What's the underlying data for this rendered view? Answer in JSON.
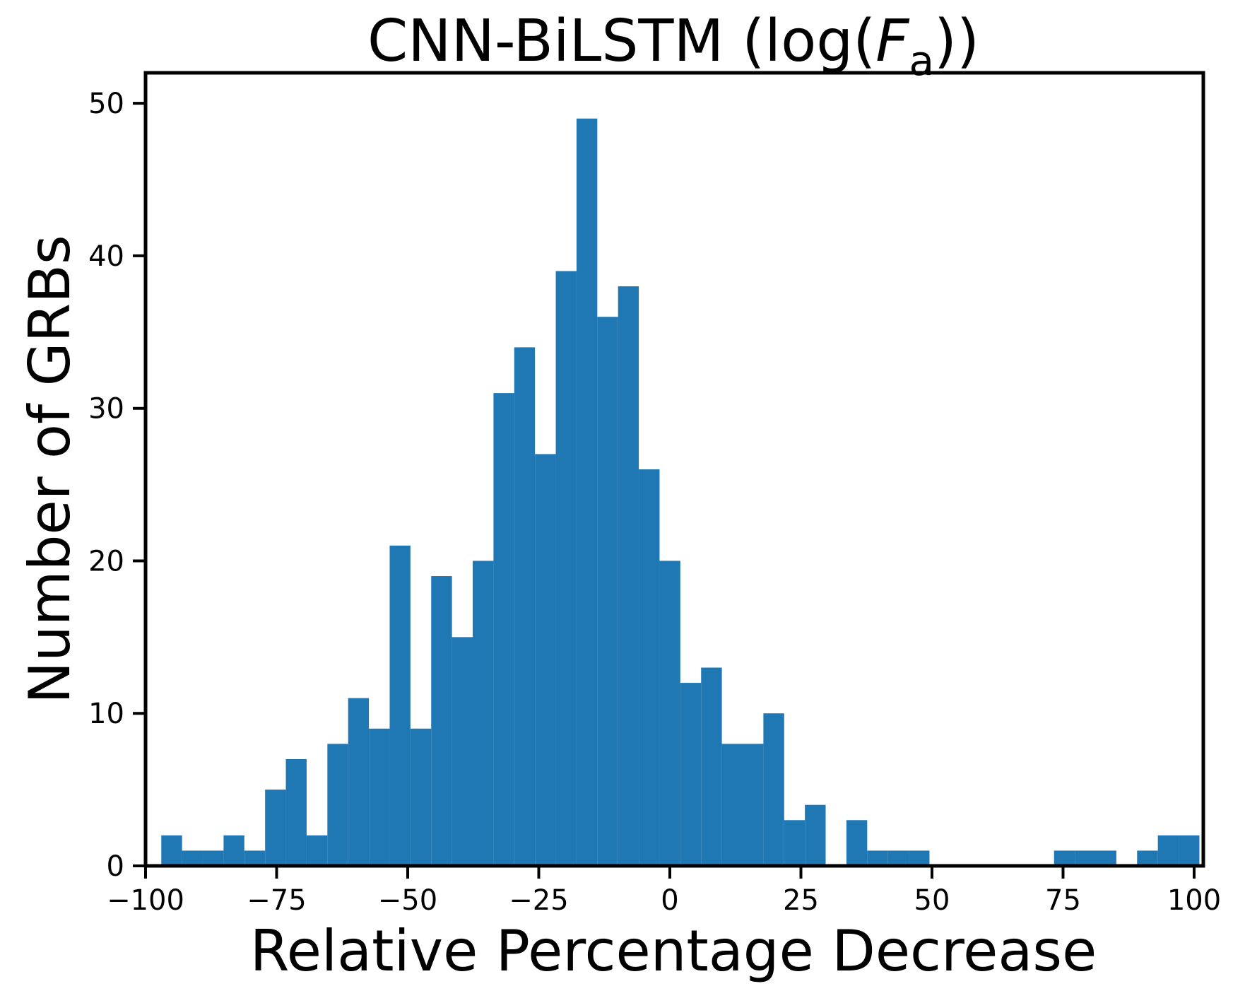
{
  "title": {
    "prefix": "CNN-BiLSTM (log(",
    "variable": "F",
    "subscript": "a",
    "suffix": "))",
    "display": "CNN-BiLSTM (log(Fₐ))"
  },
  "axes": {
    "xlabel": "Relative Percentage Decrease",
    "ylabel": "Number of GRBs"
  },
  "chart_data": {
    "type": "bar",
    "subtype": "histogram",
    "title": "CNN-BiLSTM (log(F_a))",
    "xlabel": "Relative Percentage Decrease",
    "ylabel": "Number of GRBs",
    "bar_color": "#1f77b4",
    "axis_color": "#000000",
    "grid": false,
    "legend_position": "none",
    "xlim": [
      -100,
      101.75
    ],
    "ylim": [
      0,
      52
    ],
    "x_tick_values": [
      -100,
      -75,
      -50,
      -25,
      0,
      25,
      50,
      75,
      100
    ],
    "x_tick_labels": [
      "−100",
      "−75",
      "−50",
      "−25",
      "0",
      "25",
      "50",
      "75",
      "100"
    ],
    "y_tick_values": [
      0,
      10,
      20,
      30,
      40,
      50
    ],
    "y_tick_labels": [
      "0",
      "10",
      "20",
      "30",
      "40",
      "50"
    ],
    "bin_start": -97,
    "bin_width": 3.96,
    "counts": [
      2,
      1,
      1,
      2,
      1,
      5,
      7,
      2,
      8,
      11,
      9,
      21,
      9,
      19,
      15,
      20,
      31,
      34,
      27,
      39,
      49,
      36,
      38,
      26,
      20,
      12,
      13,
      8,
      8,
      10,
      3,
      4,
      0,
      3,
      1,
      1,
      1,
      0,
      0,
      0,
      0,
      0,
      0,
      1,
      1,
      1,
      0,
      1,
      2,
      2
    ],
    "total_grbs": 505,
    "peak_count": 49
  }
}
